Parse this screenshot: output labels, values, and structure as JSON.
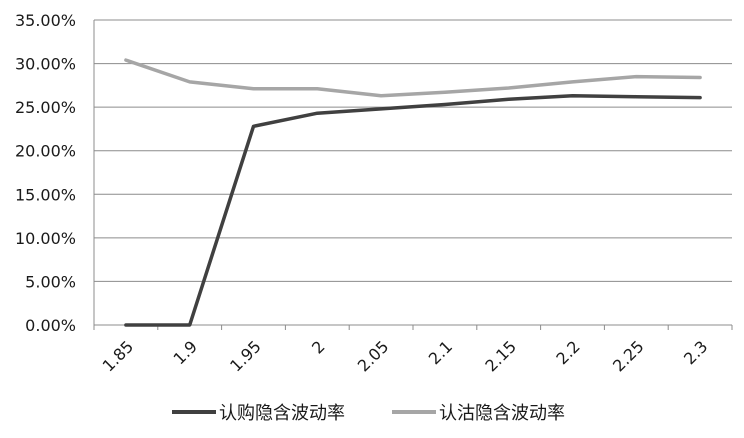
{
  "chart_data": {
    "type": "line",
    "categories": [
      "1.85",
      "1.9",
      "1.95",
      "2",
      "2.05",
      "2.1",
      "2.15",
      "2.2",
      "2.25",
      "2.3"
    ],
    "series": [
      {
        "name": "认购隐含波动率",
        "color": "#404040",
        "values": [
          0.0,
          0.0,
          22.8,
          24.3,
          24.8,
          25.3,
          25.9,
          26.3,
          26.2,
          26.1
        ]
      },
      {
        "name": "认沽隐含波动率",
        "color": "#a6a6a6",
        "values": [
          30.4,
          27.9,
          27.1,
          27.1,
          26.3,
          26.7,
          27.2,
          27.9,
          28.5,
          28.4
        ]
      }
    ],
    "ylim": [
      0,
      35
    ],
    "ytick_labels": [
      "0.00%",
      "5.00%",
      "10.00%",
      "15.00%",
      "20.00%",
      "25.00%",
      "30.00%",
      "35.00%"
    ],
    "grid": true,
    "legend_position": "bottom"
  }
}
